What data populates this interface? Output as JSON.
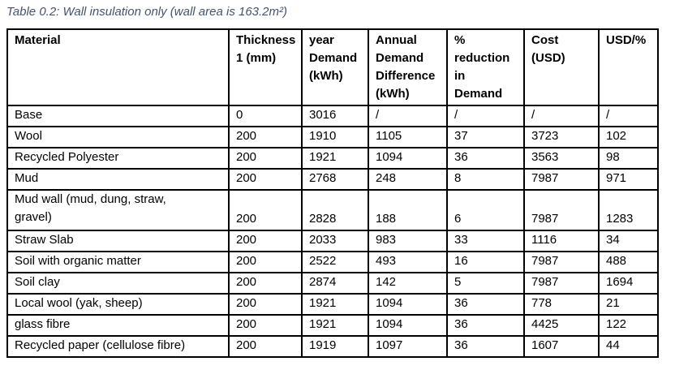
{
  "caption": "Table 0.2: Wall insulation only (wall area is 163.2m²)",
  "table": {
    "headers": [
      "Material",
      "Thickness\n1 (mm)",
      "year\nDemand\n(kWh)",
      "Annual\nDemand\nDifference\n(kWh)",
      "%\nreduction\nin\nDemand",
      "Cost\n(USD)",
      "USD/%"
    ],
    "rows": [
      [
        "Base",
        "0",
        "3016",
        "/",
        "/",
        "/",
        "/"
      ],
      [
        "Wool",
        "200",
        "1910",
        "1105",
        "37",
        "3723",
        "102"
      ],
      [
        "Recycled Polyester",
        "200",
        "1921",
        "1094",
        "36",
        "3563",
        "98"
      ],
      [
        "Mud",
        "200",
        "2768",
        "248",
        "8",
        "7987",
        "971"
      ],
      [
        "Mud wall (mud, dung, straw,\ngravel)",
        "200",
        "2828",
        "188",
        "6",
        "7987",
        "1283"
      ],
      [
        "Straw Slab",
        "200",
        "2033",
        "983",
        "33",
        "1116",
        "34"
      ],
      [
        "Soil with organic matter",
        "200",
        "2522",
        "493",
        "16",
        "7987",
        "488"
      ],
      [
        "Soil clay",
        "200",
        "2874",
        "142",
        "5",
        "7987",
        "1694"
      ],
      [
        "Local wool (yak, sheep)",
        "200",
        "1921",
        "1094",
        "36",
        "778",
        "21"
      ],
      [
        "glass fibre",
        "200",
        "1921",
        "1094",
        "36",
        "4425",
        "122"
      ],
      [
        "Recycled paper (cellulose fibre)",
        "200",
        "1919",
        "1097",
        "36",
        "1607",
        "44"
      ]
    ]
  },
  "colors": {
    "caption_text": "#44546A",
    "table_border": "#000000",
    "body_text": "#000000",
    "background": "#FFFFFF"
  }
}
